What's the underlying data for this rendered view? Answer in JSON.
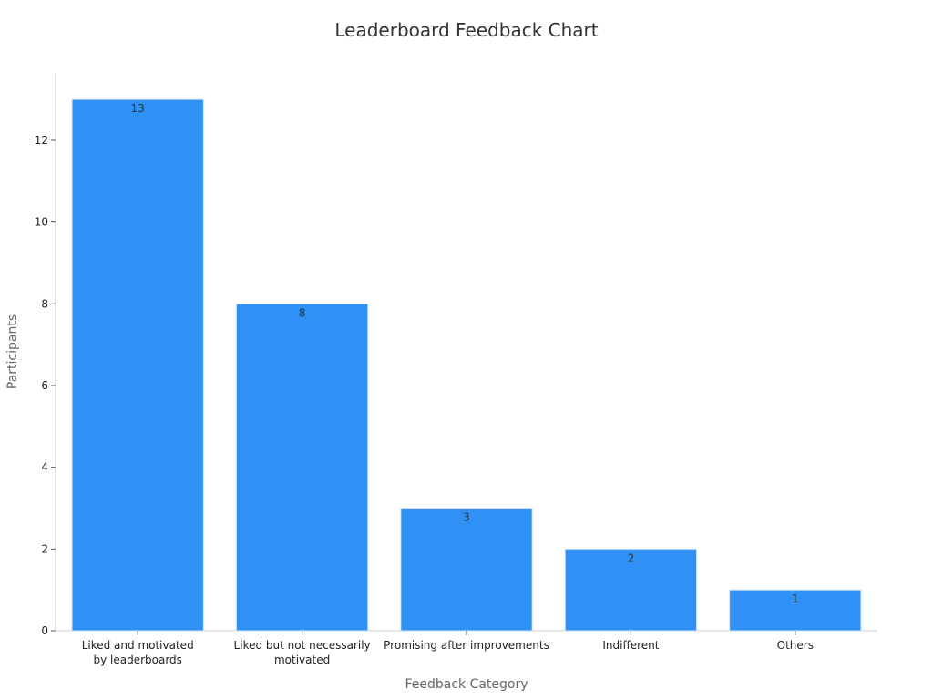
{
  "chart_data": {
    "type": "bar",
    "title": "Leaderboard Feedback Chart",
    "xlabel": "Feedback Category",
    "ylabel": "Participants",
    "categories": [
      [
        "Liked and motivated",
        "by leaderboards"
      ],
      [
        "Liked but not necessarily",
        "motivated"
      ],
      [
        "Promising after improvements"
      ],
      [
        "Indifferent"
      ],
      [
        "Others"
      ]
    ],
    "values": [
      13,
      8,
      3,
      2,
      1
    ],
    "ylim": [
      0,
      13.65
    ],
    "yticks": [
      0,
      2,
      4,
      6,
      8,
      10,
      12
    ],
    "grid": false,
    "legend": "none",
    "bar_color": "#2f91f5",
    "bar_edge_color": "#cfe3f7",
    "axis_color": "#cccccc"
  }
}
